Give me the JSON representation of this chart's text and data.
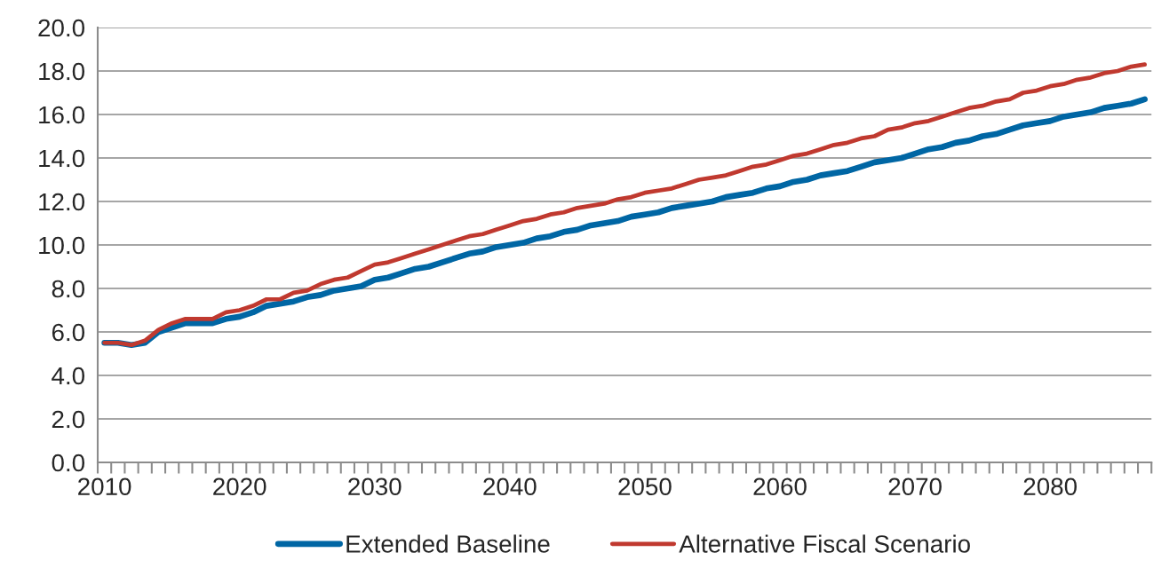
{
  "chart_data": {
    "type": "line",
    "categories": [
      "2010",
      null,
      null,
      null,
      null,
      null,
      null,
      null,
      null,
      null,
      "2020",
      null,
      null,
      null,
      null,
      null,
      null,
      null,
      null,
      null,
      "2030",
      null,
      null,
      null,
      null,
      null,
      null,
      null,
      null,
      null,
      "2040",
      null,
      null,
      null,
      null,
      null,
      null,
      null,
      null,
      null,
      "2050",
      null,
      null,
      null,
      null,
      null,
      null,
      null,
      null,
      null,
      "2060",
      null,
      null,
      null,
      null,
      null,
      null,
      null,
      null,
      null,
      "2070",
      null,
      null,
      null,
      null,
      null,
      null,
      null,
      null,
      null,
      "2080",
      null,
      null,
      null,
      null,
      null,
      null,
      null
    ],
    "series": [
      {
        "name": "Extended Baseline",
        "color": "#0066a4",
        "values": [
          5.5,
          5.5,
          5.4,
          5.5,
          6.0,
          6.2,
          6.4,
          6.4,
          6.4,
          6.6,
          6.7,
          6.9,
          7.2,
          7.3,
          7.4,
          7.6,
          7.7,
          7.9,
          8.0,
          8.1,
          8.4,
          8.5,
          8.7,
          8.9,
          9.0,
          9.2,
          9.4,
          9.6,
          9.7,
          9.9,
          10.0,
          10.1,
          10.3,
          10.4,
          10.6,
          10.7,
          10.9,
          11.0,
          11.1,
          11.3,
          11.4,
          11.5,
          11.7,
          11.8,
          11.9,
          12.0,
          12.2,
          12.3,
          12.4,
          12.6,
          12.7,
          12.9,
          13.0,
          13.2,
          13.3,
          13.4,
          13.6,
          13.8,
          13.9,
          14.0,
          14.2,
          14.4,
          14.5,
          14.7,
          14.8,
          15.0,
          15.1,
          15.3,
          15.5,
          15.6,
          15.7,
          15.9,
          16.0,
          16.1,
          16.3,
          16.4,
          16.5,
          16.7
        ]
      },
      {
        "name": "Alternative Fiscal Scenario",
        "color": "#c0392f",
        "values": [
          5.5,
          5.5,
          5.4,
          5.6,
          6.1,
          6.4,
          6.6,
          6.6,
          6.6,
          6.9,
          7.0,
          7.2,
          7.5,
          7.5,
          7.8,
          7.9,
          8.2,
          8.4,
          8.5,
          8.8,
          9.1,
          9.2,
          9.4,
          9.6,
          9.8,
          10.0,
          10.2,
          10.4,
          10.5,
          10.7,
          10.9,
          11.1,
          11.2,
          11.4,
          11.5,
          11.7,
          11.8,
          11.9,
          12.1,
          12.2,
          12.4,
          12.5,
          12.6,
          12.8,
          13.0,
          13.1,
          13.2,
          13.4,
          13.6,
          13.7,
          13.9,
          14.1,
          14.2,
          14.4,
          14.6,
          14.7,
          14.9,
          15.0,
          15.3,
          15.4,
          15.6,
          15.7,
          15.9,
          16.1,
          16.3,
          16.4,
          16.6,
          16.7,
          17.0,
          17.1,
          17.3,
          17.4,
          17.6,
          17.7,
          17.9,
          18.0,
          18.2,
          18.3
        ]
      }
    ],
    "ylim": [
      0,
      20
    ],
    "yticks": [
      {
        "value": 0,
        "label": "0.0"
      },
      {
        "value": 2,
        "label": "2.0"
      },
      {
        "value": 4,
        "label": "4.0"
      },
      {
        "value": 6,
        "label": "6.0"
      },
      {
        "value": 8,
        "label": "8.0"
      },
      {
        "value": 10,
        "label": "10.0"
      },
      {
        "value": 12,
        "label": "12.0"
      },
      {
        "value": 14,
        "label": "14.0"
      },
      {
        "value": 16,
        "label": "16.0"
      },
      {
        "value": 18,
        "label": "18.0"
      },
      {
        "value": 20,
        "label": "20.0"
      }
    ],
    "grid": "y",
    "legend": "bottom",
    "marker": "none",
    "line_style": "solid"
  }
}
